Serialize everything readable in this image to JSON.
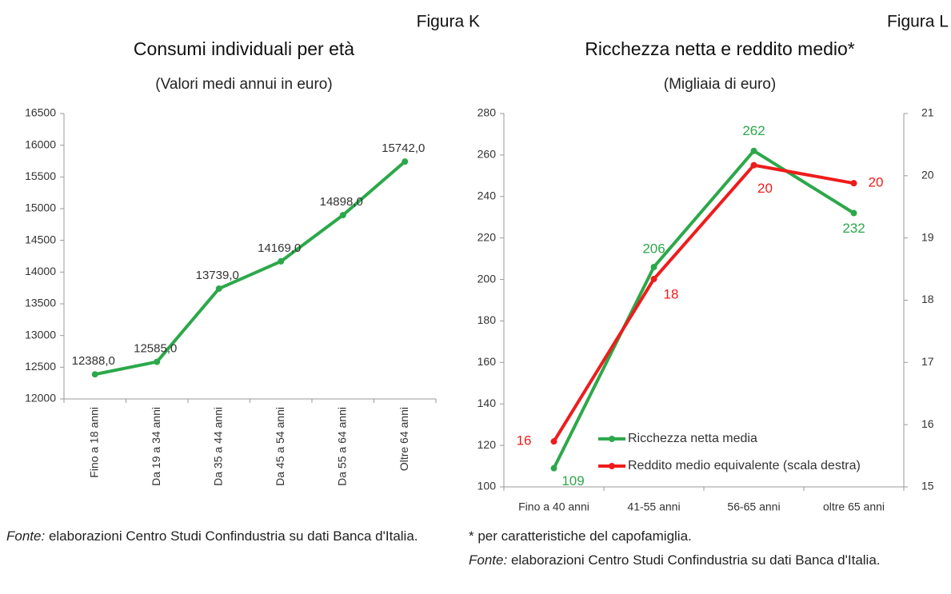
{
  "chart_data": [
    {
      "type": "line",
      "figure_label": "Figura K",
      "title": "Consumi individuali per età",
      "subtitle": "(Valori medi annui in euro)",
      "categories": [
        "Fino a 18 anni",
        "Da 19 a 34 anni",
        "Da 35 a 44 anni",
        "Da 45 a 54 anni",
        "Da 55 a 64 anni",
        "Oltre 64 anni"
      ],
      "series": [
        {
          "color": "#2ca84a",
          "values": [
            12388,
            12585,
            13739,
            14169,
            14898,
            15742
          ],
          "value_labels": [
            "12388,0",
            "12585,0",
            "13739,0",
            "14169,0",
            "14898,0",
            "15742,0"
          ]
        }
      ],
      "ylim": [
        12000,
        16500
      ],
      "yticks": [
        12000,
        12500,
        13000,
        13500,
        14000,
        14500,
        15000,
        15500,
        16000,
        16500
      ],
      "source_label": "Fonte:",
      "source": "elaborazioni Centro Studi Confindustria su dati Banca d'Italia."
    },
    {
      "type": "line",
      "figure_label": "Figura L",
      "title": "Ricchezza netta e reddito medio*",
      "subtitle": "(Migliaia di euro)",
      "categories": [
        "Fino a 40 anni",
        "41-55 anni",
        "56-65 anni",
        "oltre 65 anni"
      ],
      "series": [
        {
          "name": "Ricchezza netta media",
          "color": "#2ca84a",
          "values": [
            109,
            206,
            262,
            232
          ]
        },
        {
          "name": "Reddito medio equivalente (scala destra)",
          "color": "#ee1c1c",
          "axis": "y2",
          "values": [
            15.73,
            18.34,
            20.17,
            19.88
          ],
          "value_labels": [
            "16",
            "18",
            "20",
            "20"
          ]
        }
      ],
      "ylim": [
        100,
        280
      ],
      "yticks": [
        100,
        120,
        140,
        160,
        180,
        200,
        220,
        240,
        260,
        280
      ],
      "y2lim": [
        15,
        21
      ],
      "y2ticks": [
        15,
        16,
        17,
        18,
        19,
        20,
        21
      ],
      "legend": "bottom",
      "note": "* per caratteristiche del capofamiglia.",
      "source_label": "Fonte:",
      "source": "elaborazioni Centro Studi Confindustria su dati Banca d'Italia."
    }
  ]
}
